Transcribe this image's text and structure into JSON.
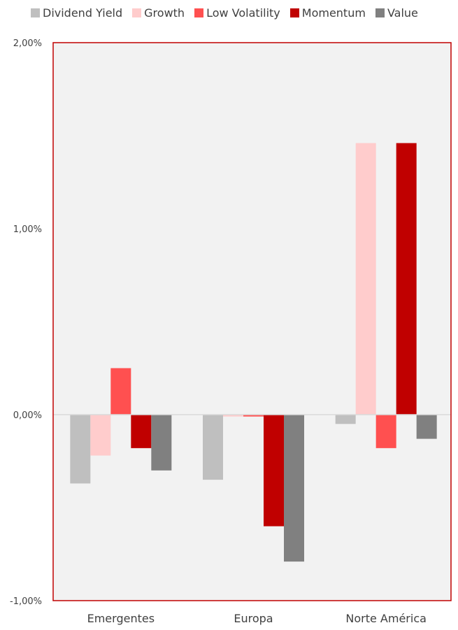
{
  "chart_data": {
    "type": "bar",
    "categories": [
      "Emergentes",
      "Europa",
      "Norte América"
    ],
    "series": [
      {
        "name": "Dividend Yield",
        "color": "#bfbfbf",
        "values": [
          -0.37,
          -0.35,
          -0.05
        ]
      },
      {
        "name": "Growth",
        "color": "#ffcccc",
        "values": [
          -0.22,
          -0.01,
          1.46
        ]
      },
      {
        "name": "Low Volatility",
        "color": "#ff5050",
        "values": [
          0.25,
          -0.01,
          -0.18
        ]
      },
      {
        "name": "Momentum",
        "color": "#c00000",
        "values": [
          -0.18,
          -0.6,
          1.46
        ]
      },
      {
        "name": "Value",
        "color": "#808080",
        "values": [
          -0.3,
          -0.79,
          -0.13
        ]
      }
    ],
    "yticks": [
      2,
      1,
      0,
      -1
    ],
    "ytick_labels": [
      "2,00%",
      "1,00%",
      "0,00%",
      "-1,00%"
    ],
    "ylim": [
      -1,
      2
    ],
    "legend_position": "top",
    "plot_background": "#f2f2f2",
    "plot_border_color": "#c00000",
    "grid": false
  }
}
